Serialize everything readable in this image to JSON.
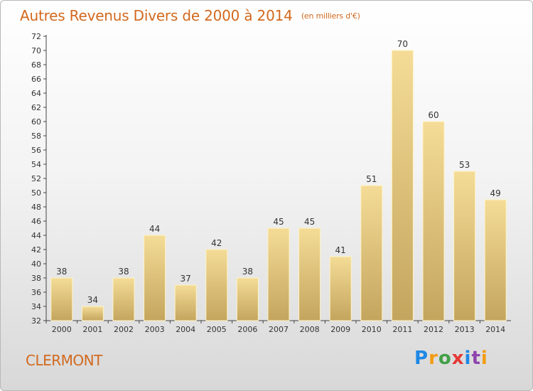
{
  "header": {
    "title": "Autres Revenus Divers de 2000 à 2014",
    "unit": "(en milliers d'€)"
  },
  "footer": {
    "city": "CLERMONT",
    "brand": "Proxiti"
  },
  "colors": {
    "title": "#d2691e",
    "bar_top": "#f4dc97",
    "bar_bottom": "#c4a55e"
  },
  "chart_data": {
    "type": "bar",
    "title": "Autres Revenus Divers de 2000 à 2014",
    "ylabel": "(en milliers d'€)",
    "xlabel": "",
    "categories": [
      "2000",
      "2001",
      "2002",
      "2003",
      "2004",
      "2005",
      "2006",
      "2007",
      "2008",
      "2009",
      "2010",
      "2011",
      "2012",
      "2013",
      "2014"
    ],
    "values": [
      38,
      34,
      38,
      44,
      37,
      42,
      38,
      45,
      45,
      41,
      51,
      70,
      60,
      53,
      49
    ],
    "ylim": [
      32,
      72
    ],
    "ytick_step": 2,
    "grid": false,
    "data_labels": true
  }
}
